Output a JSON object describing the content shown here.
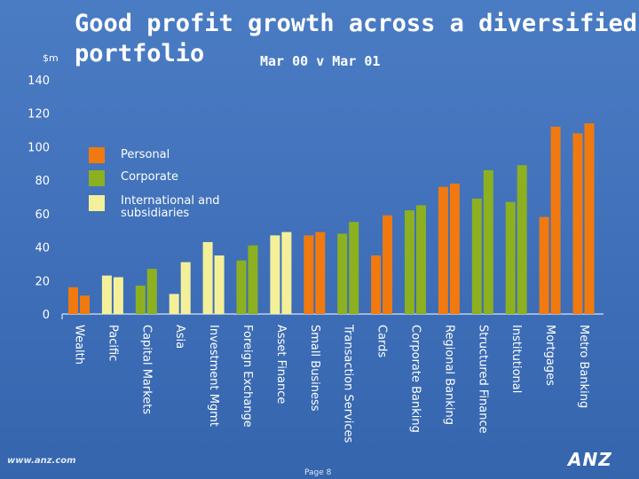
{
  "title_line1": "Good profit growth across a diversified",
  "title_line2": "portfolio",
  "subtitle": "Mar 00 v Mar 01",
  "unit_label": "$m",
  "legend": [
    {
      "label": "Personal",
      "color": "#f07a10"
    },
    {
      "label": "Corporate",
      "color": "#8cb020"
    },
    {
      "label": "International and subsidiaries",
      "color": "#f4f09a"
    }
  ],
  "footer": {
    "url": "www.anz.com",
    "page": "Page 8",
    "logo": "ANZ"
  },
  "chart_data": {
    "type": "bar",
    "ylim": [
      0,
      140
    ],
    "yticks": [
      0,
      20,
      40,
      60,
      80,
      100,
      120,
      140
    ],
    "grid": false,
    "series": [
      {
        "name": "Mar 00"
      },
      {
        "name": "Mar 01"
      }
    ],
    "categories": [
      {
        "label": "Wealth",
        "segment": "Personal",
        "values": [
          16,
          11
        ]
      },
      {
        "label": "Pacific",
        "segment": "International and subsidiaries",
        "values": [
          23,
          22
        ]
      },
      {
        "label": "Capital Markets",
        "segment": "Corporate",
        "values": [
          17,
          27
        ]
      },
      {
        "label": "Asia",
        "segment": "International and subsidiaries",
        "values": [
          12,
          31
        ]
      },
      {
        "label": "Investment Mgmt",
        "segment": "International and subsidiaries",
        "values": [
          43,
          35
        ]
      },
      {
        "label": "Foreign Exchange",
        "segment": "Corporate",
        "values": [
          32,
          41
        ]
      },
      {
        "label": "Asset Finance",
        "segment": "International and subsidiaries",
        "values": [
          47,
          49
        ]
      },
      {
        "label": "Small Business",
        "segment": "Personal",
        "values": [
          47,
          49
        ]
      },
      {
        "label": "Transaction Services",
        "segment": "Corporate",
        "values": [
          48,
          55
        ]
      },
      {
        "label": "Cards",
        "segment": "Personal",
        "values": [
          35,
          59
        ]
      },
      {
        "label": "Corporate Banking",
        "segment": "Corporate",
        "values": [
          62,
          65
        ]
      },
      {
        "label": "Regional Banking",
        "segment": "Personal",
        "values": [
          76,
          78
        ]
      },
      {
        "label": "Structured Finance",
        "segment": "Corporate",
        "values": [
          69,
          86
        ]
      },
      {
        "label": "Institutional",
        "segment": "Corporate",
        "values": [
          67,
          89
        ]
      },
      {
        "label": "Mortgages",
        "segment": "Personal",
        "values": [
          58,
          112
        ]
      },
      {
        "label": "Metro Banking",
        "segment": "Personal",
        "values": [
          108,
          114
        ]
      }
    ]
  }
}
